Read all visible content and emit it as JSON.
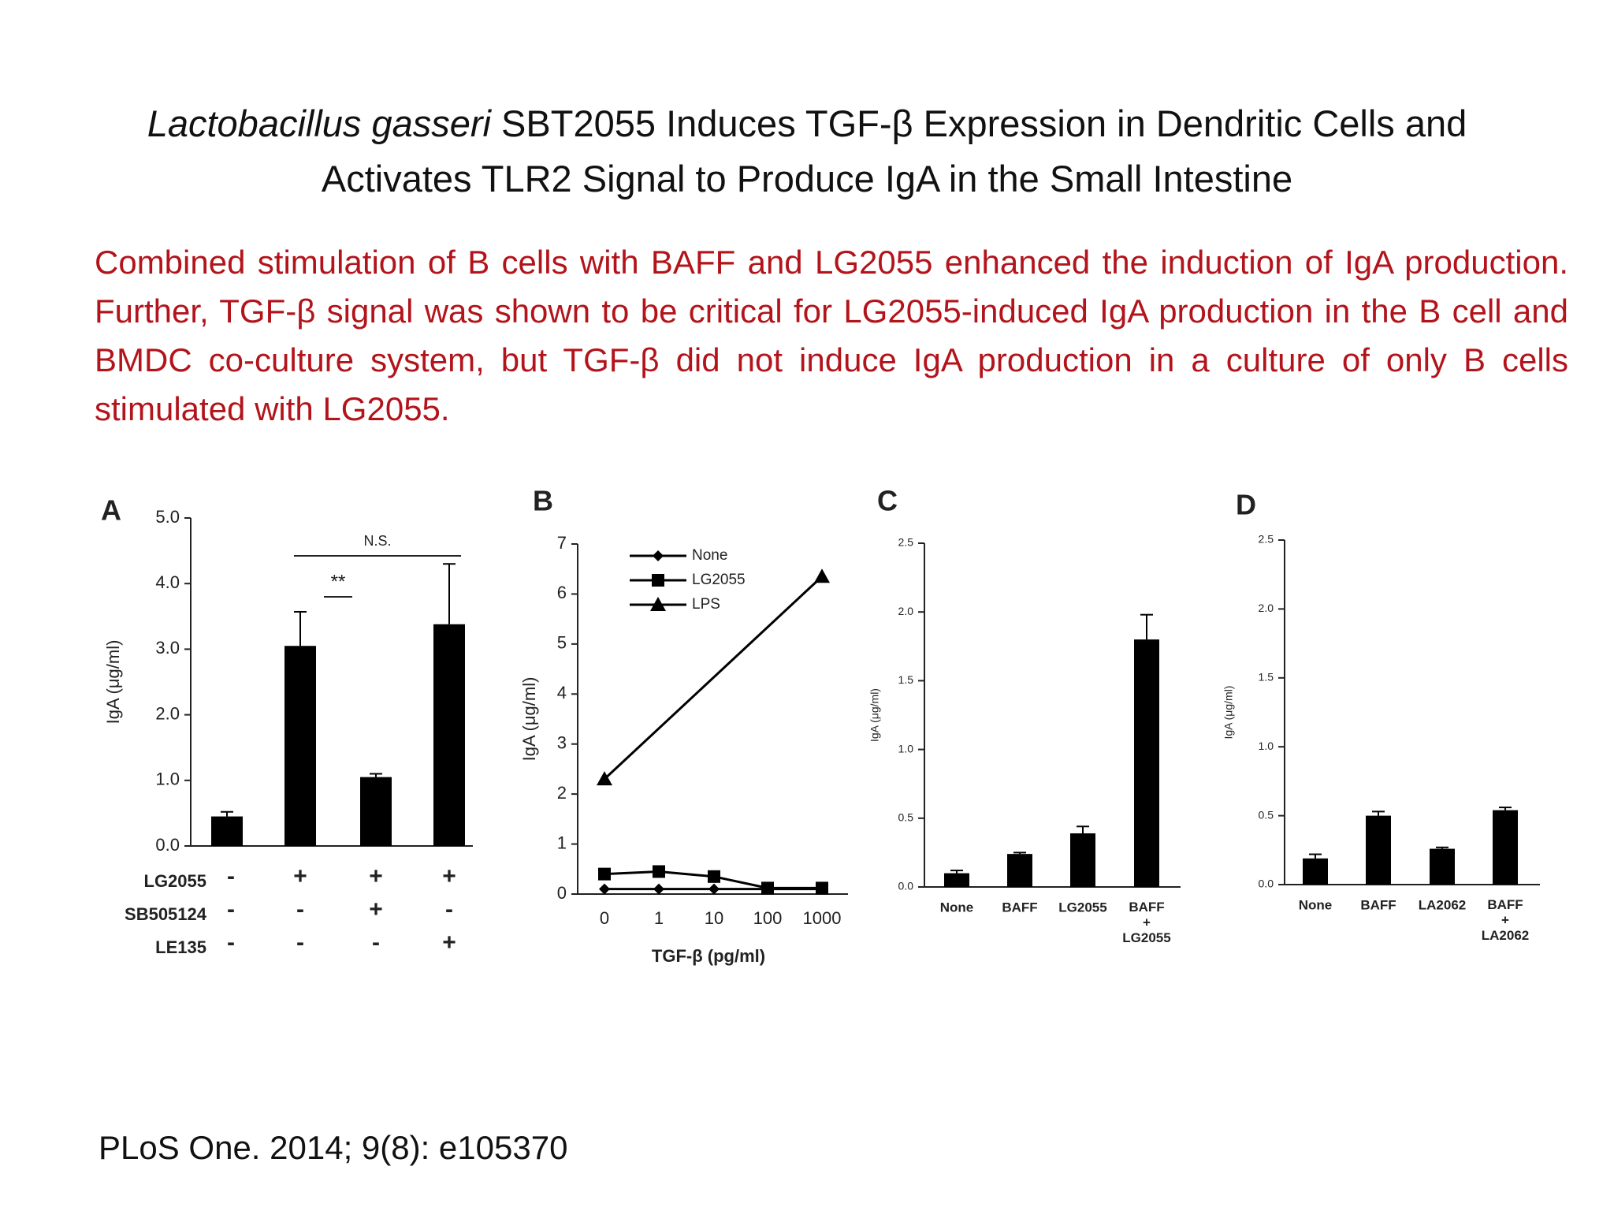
{
  "title_italic": "Lactobacillus gasseri",
  "title_rest": " SBT2055 Induces TGF-β Expression in Dendritic Cells and Activates TLR2 Signal to Produce IgA in the Small Intestine",
  "text": "Combined stimulation of B cells with BAFF and LG2055 enhanced the induction of IgA production. Further, TGF-β signal was shown to be critical for LG2055-induced IgA production in the B cell and BMDC co-culture system, but TGF-β did not induce IgA production in a culture of only B cells stimulated with LG2055.",
  "citation": "PLoS One. 2014; 9(8): e105370",
  "chart_data": [
    {
      "type": "bar",
      "panel": "A",
      "ylabel": "IgA (μg/ml)",
      "color": "#000000",
      "categories": [
        null,
        null,
        null,
        null
      ],
      "values": [
        0.45,
        3.05,
        1.05,
        3.38
      ],
      "errors": [
        0.07,
        0.52,
        0.05,
        0.92
      ],
      "ylim": [
        0,
        5
      ],
      "yticks": [
        {
          "value": 0,
          "label": "0.0"
        },
        {
          "value": 1,
          "label": "1.0"
        },
        {
          "value": 2,
          "label": "2.0"
        },
        {
          "value": 3,
          "label": "3.0"
        },
        {
          "value": 4,
          "label": "4.0"
        },
        {
          "value": 5,
          "label": "5.0"
        }
      ],
      "rows": [
        {
          "label": "LG2055",
          "signs": [
            "-",
            "+",
            "+",
            "+"
          ]
        },
        {
          "label": "SB505124",
          "signs": [
            "-",
            "-",
            "+",
            "-"
          ]
        },
        {
          "label": "LE135",
          "signs": [
            "-",
            "-",
            "-",
            "+"
          ]
        }
      ],
      "annotations": [
        "N.S.",
        "**"
      ]
    },
    {
      "type": "line",
      "panel": "B",
      "ylabel": "IgA (μg/ml)",
      "xlabel": "TGF-β (pg/ml)",
      "categories": [
        "0",
        "1",
        "10",
        "100",
        "1000"
      ],
      "ylim": [
        0,
        7
      ],
      "yticks": [
        0,
        1,
        2,
        3,
        4,
        5,
        6,
        7
      ],
      "legend": "top-left",
      "series": [
        {
          "name": "None",
          "color": "#000000",
          "marker": "diamond",
          "x": [
            "0",
            "1",
            "10",
            "100",
            "1000"
          ],
          "values": [
            0.1,
            0.1,
            0.1,
            0.1,
            0.1
          ]
        },
        {
          "name": "LG2055",
          "color": "#000000",
          "marker": "square",
          "x": [
            "0",
            "1",
            "10",
            "100",
            "1000"
          ],
          "values": [
            0.4,
            0.45,
            0.35,
            0.12,
            0.12
          ]
        },
        {
          "name": "LPS",
          "color": "#000000",
          "marker": "triangle",
          "x": [
            "0",
            "1000"
          ],
          "values": [
            2.3,
            6.35
          ]
        }
      ]
    },
    {
      "type": "bar",
      "panel": "C",
      "ylabel": "IgA (μg/ml)",
      "color": "#000000",
      "categories": [
        "None",
        "BAFF",
        "LG2055",
        "BAFF\n+\nLG2055"
      ],
      "values": [
        0.1,
        0.24,
        0.39,
        1.8
      ],
      "errors": [
        0.02,
        0.01,
        0.05,
        0.18
      ],
      "ylim": [
        0,
        2.5
      ],
      "yticks": [
        {
          "value": 0,
          "label": "0.0"
        },
        0.5,
        {
          "value": 1,
          "label": "1.0"
        },
        1.5,
        {
          "value": 2,
          "label": "2.0"
        },
        2.5
      ]
    },
    {
      "type": "bar",
      "panel": "D",
      "ylabel": "IgA (μg/ml)",
      "color": "#000000",
      "categories": [
        "None",
        "BAFF",
        "LA2062",
        "BAFF\n+\nLA2062"
      ],
      "values": [
        0.19,
        0.5,
        0.26,
        0.54
      ],
      "errors": [
        0.03,
        0.03,
        0.01,
        0.02
      ],
      "ylim": [
        0,
        2.5
      ],
      "yticks": [
        {
          "value": 0,
          "label": "0.0"
        },
        0.5,
        {
          "value": 1,
          "label": "1.0"
        },
        1.5,
        {
          "value": 2,
          "label": "2.0"
        },
        2.5
      ]
    }
  ]
}
